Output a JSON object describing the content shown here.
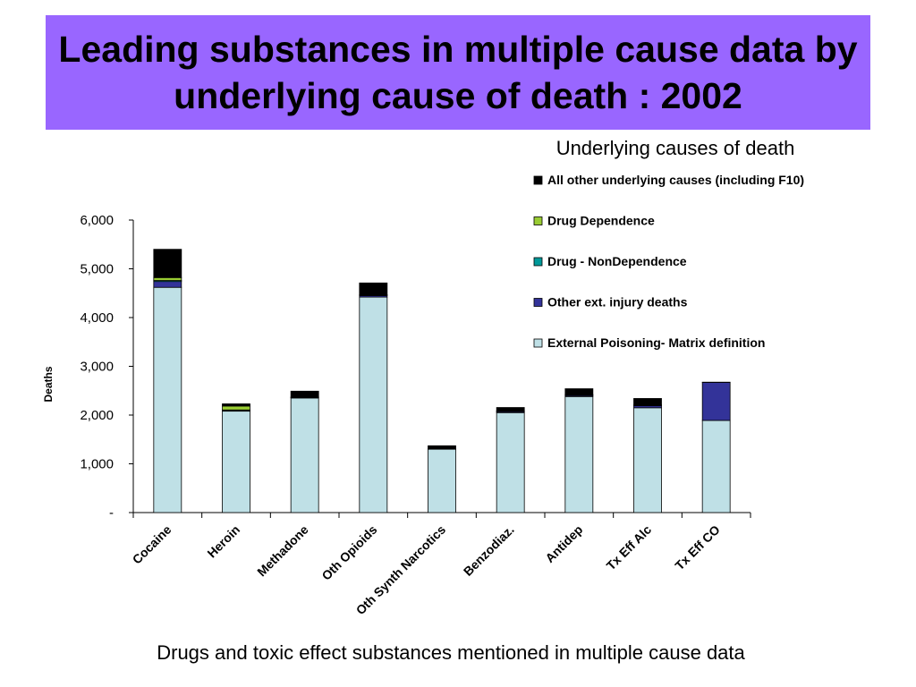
{
  "title": "Leading substances in multiple cause data by underlying cause of death : 2002",
  "legend_heading": "Underlying causes of death",
  "footer": "Drugs and toxic effect substances mentioned in multiple cause data",
  "colors": {
    "banner": "#9966ff",
    "external_poisoning": "#bfe0e6",
    "other_ext_injury": "#333399",
    "drug_nondependence": "#009999",
    "drug_dependence": "#99cc33",
    "all_other": "#000000"
  },
  "chart_data": {
    "type": "bar",
    "stacked": true,
    "ylabel": "Deaths",
    "xlabel": "",
    "ylim": [
      0,
      6000
    ],
    "yticks": [
      0,
      1000,
      2000,
      3000,
      4000,
      5000,
      6000
    ],
    "ytick_labels": [
      "-",
      "1,000",
      "2,000",
      "3,000",
      "4,000",
      "5,000",
      "6,000"
    ],
    "legend_position": "top-right",
    "grid": false,
    "categories": [
      "Cocaine",
      "Heroin",
      "Methadone",
      "Oth Opioids",
      "Oth Synth Narcotics",
      "Benzodiaz.",
      "Antidep",
      "Tx Eff Alc",
      "Tx Eff CO"
    ],
    "series": [
      {
        "name": "External Poisoning- Matrix definition",
        "color": "#bfe0e6",
        "values": [
          4620,
          2080,
          2350,
          4420,
          1300,
          2050,
          2380,
          2150,
          1890
        ]
      },
      {
        "name": "Other ext. injury deaths",
        "color": "#333399",
        "values": [
          120,
          15,
          10,
          30,
          10,
          20,
          20,
          40,
          780
        ]
      },
      {
        "name": "Drug - NonDependence",
        "color": "#009999",
        "values": [
          20,
          10,
          5,
          10,
          5,
          5,
          10,
          10,
          5
        ]
      },
      {
        "name": "Drug Dependence",
        "color": "#99cc33",
        "values": [
          60,
          80,
          5,
          10,
          5,
          10,
          10,
          10,
          0
        ]
      },
      {
        "name": "All other underlying causes (including F10)",
        "color": "#000000",
        "values": [
          580,
          45,
          120,
          240,
          50,
          70,
          120,
          130,
          0
        ]
      }
    ],
    "legend_order": [
      "All other underlying causes (including F10)",
      "Drug Dependence",
      "Drug - NonDependence",
      "Other ext. injury deaths",
      "External Poisoning- Matrix definition"
    ]
  }
}
